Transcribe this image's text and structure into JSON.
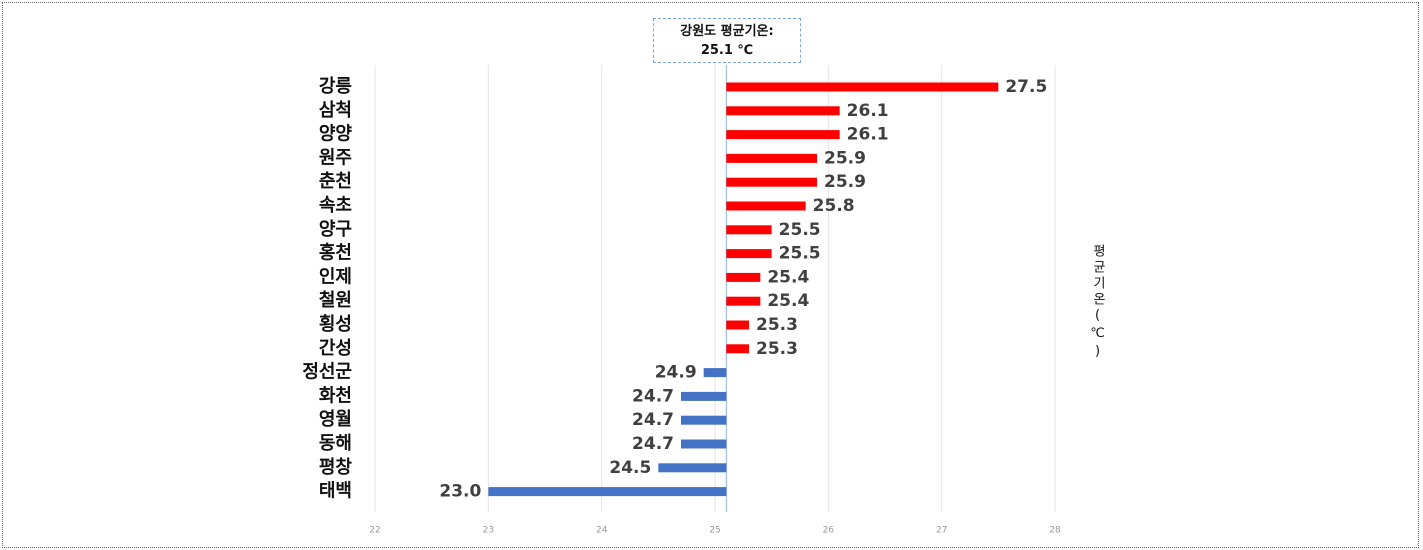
{
  "chart_data": {
    "type": "bar",
    "orientation": "horizontal",
    "categories": [
      "강릉",
      "삼척",
      "양양",
      "원주",
      "춘천",
      "속초",
      "양구",
      "홍천",
      "인제",
      "철원",
      "횡성",
      "간성",
      "정선군",
      "화천",
      "영월",
      "동해",
      "평창",
      "태백"
    ],
    "values": [
      27.5,
      26.1,
      26.1,
      25.9,
      25.9,
      25.8,
      25.5,
      25.5,
      25.4,
      25.4,
      25.3,
      25.3,
      24.9,
      24.7,
      24.7,
      24.7,
      24.5,
      23.0
    ],
    "value_labels": [
      "27.5",
      "26.1",
      "26.1",
      "25.9",
      "25.9",
      "25.8",
      "25.5",
      "25.5",
      "25.4",
      "25.4",
      "25.3",
      "25.3",
      "24.9",
      "24.7",
      "24.7",
      "24.7",
      "24.5",
      "23.0"
    ],
    "reference": {
      "label": "강원도 평균기온:",
      "value": 25.1,
      "value_label": "25.1 ℃"
    },
    "above_color": "#ff0000",
    "below_color": "#4472c4",
    "axis_label": "평균기온(℃)",
    "xlim": [
      22,
      28
    ],
    "xticks": [
      22,
      23,
      24,
      25,
      26,
      27,
      28
    ],
    "grid": true
  }
}
